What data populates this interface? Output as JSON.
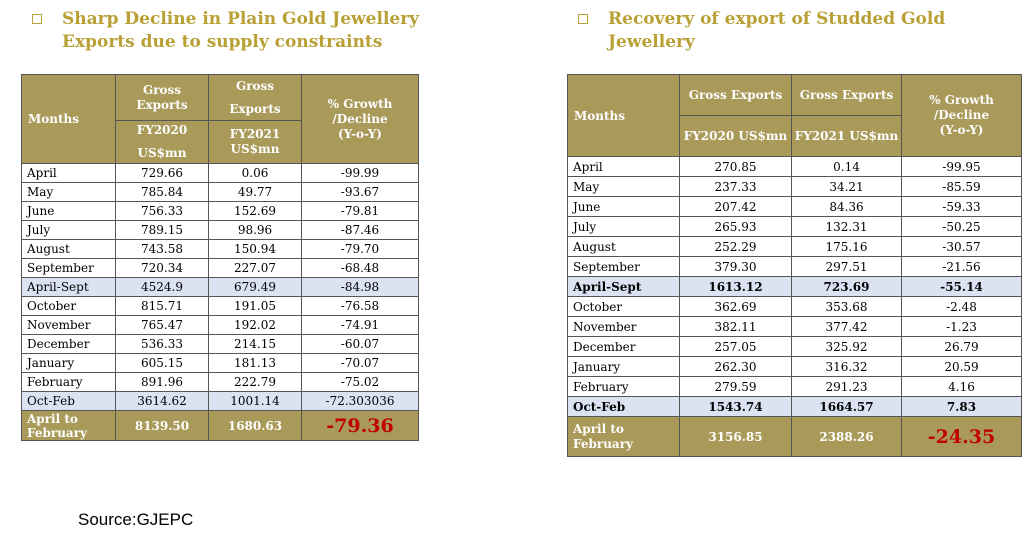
{
  "left": {
    "title_line1": "Sharp Decline in Plain Gold Jewellery",
    "title_line2": "Exports due to supply constraints",
    "headers": {
      "months": "Months",
      "col1_line1": "Gross",
      "col1_line2": "Exports",
      "col1_line3": "FY2020",
      "col1_line4": "US$mn",
      "col2_line1": "Gross",
      "col2_line2": "Exports",
      "col2_line3": "FY2021",
      "col2_line4": "US$mn",
      "col3_line1": "% Growth",
      "col3_line2": "/Decline",
      "col3_line3": "(Y-o-Y)"
    },
    "rows": [
      {
        "month": "April",
        "fy2020": "729.66",
        "fy2021": "0.06",
        "growth": "-99.99"
      },
      {
        "month": "May",
        "fy2020": "785.84",
        "fy2021": "49.77",
        "growth": "-93.67"
      },
      {
        "month": "June",
        "fy2020": "756.33",
        "fy2021": "152.69",
        "growth": "-79.81"
      },
      {
        "month": "July",
        "fy2020": "789.15",
        "fy2021": "98.96",
        "growth": "-87.46"
      },
      {
        "month": "August",
        "fy2020": "743.58",
        "fy2021": "150.94",
        "growth": "-79.70"
      },
      {
        "month": "September",
        "fy2020": "720.34",
        "fy2021": "227.07",
        "growth": "-68.48"
      },
      {
        "month": "April-Sept",
        "fy2020": "4524.9",
        "fy2021": "679.49",
        "growth": "-84.98"
      },
      {
        "month": "October",
        "fy2020": "815.71",
        "fy2021": "191.05",
        "growth": "-76.58"
      },
      {
        "month": "November",
        "fy2020": "765.47",
        "fy2021": "192.02",
        "growth": "-74.91"
      },
      {
        "month": "December",
        "fy2020": "536.33",
        "fy2021": "214.15",
        "growth": "-60.07"
      },
      {
        "month": "January",
        "fy2020": "605.15",
        "fy2021": "181.13",
        "growth": "-70.07"
      },
      {
        "month": "February",
        "fy2020": "891.96",
        "fy2021": "222.79",
        "growth": "-75.02"
      },
      {
        "month": "Oct-Feb",
        "fy2020": "3614.62",
        "fy2021": "1001.14",
        "growth": "-72.303036"
      }
    ],
    "total": {
      "label_line1": "April to",
      "label_line2": "February",
      "fy2020": "8139.50",
      "fy2021": "1680.63",
      "growth": "-79.36"
    }
  },
  "right": {
    "title_line1": "Recovery of export of  Studded Gold",
    "title_line2": "Jewellery",
    "headers": {
      "months": "Months",
      "col1_top": "Gross Exports",
      "col1_bottom": "FY2020  US$mn",
      "col2_top": "Gross Exports",
      "col2_bottom": "FY2021 US$mn",
      "col3_line1": "% Growth",
      "col3_line2": "/Decline",
      "col3_line3": "(Y-o-Y)"
    },
    "rows": [
      {
        "month": "April",
        "fy2020": "270.85",
        "fy2021": "0.14",
        "growth": "-99.95"
      },
      {
        "month": "May",
        "fy2020": "237.33",
        "fy2021": "34.21",
        "growth": "-85.59"
      },
      {
        "month": "June",
        "fy2020": "207.42",
        "fy2021": "84.36",
        "growth": "-59.33"
      },
      {
        "month": "July",
        "fy2020": "265.93",
        "fy2021": "132.31",
        "growth": "-50.25"
      },
      {
        "month": "August",
        "fy2020": "252.29",
        "fy2021": "175.16",
        "growth": "-30.57"
      },
      {
        "month": "September",
        "fy2020": "379.30",
        "fy2021": "297.51",
        "growth": "-21.56"
      },
      {
        "month": "April-Sept",
        "fy2020": "1613.12",
        "fy2021": "723.69",
        "growth": "-55.14"
      },
      {
        "month": "October",
        "fy2020": "362.69",
        "fy2021": "353.68",
        "growth": "-2.48"
      },
      {
        "month": "November",
        "fy2020": "382.11",
        "fy2021": "377.42",
        "growth": "-1.23"
      },
      {
        "month": "December",
        "fy2020": "257.05",
        "fy2021": "325.92",
        "growth": "26.79"
      },
      {
        "month": "January",
        "fy2020": "262.30",
        "fy2021": "316.32",
        "growth": "20.59"
      },
      {
        "month": "February",
        "fy2020": "279.59",
        "fy2021": "291.23",
        "growth": "4.16"
      },
      {
        "month": "Oct-Feb",
        "fy2020": "1543.74",
        "fy2021": "1664.57",
        "growth": "7.83"
      }
    ],
    "total": {
      "label_line1": "April to",
      "label_line2": "February",
      "fy2020": "3156.85",
      "fy2021": "2388.26",
      "growth": "-24.35"
    }
  },
  "source": "Source:GJEPC",
  "colors": {
    "heading": "#b8a035",
    "header_fill": "#a99a5a",
    "highlight_row": "#dbe3f3",
    "total_value": "#c00000"
  }
}
